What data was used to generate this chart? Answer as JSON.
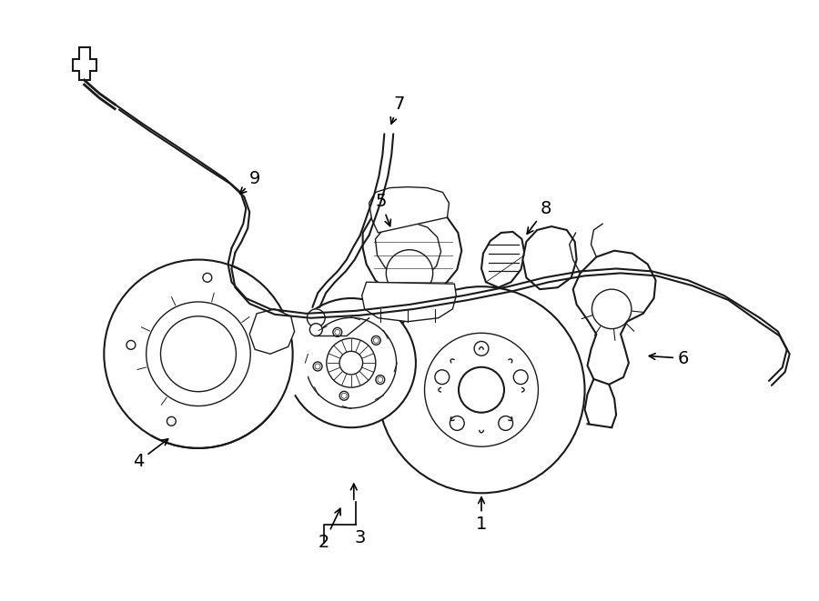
{
  "background_color": "#ffffff",
  "line_color": "#1a1a1a",
  "fig_width": 9.0,
  "fig_height": 6.61,
  "dpi": 100,
  "label_fontsize": 14
}
